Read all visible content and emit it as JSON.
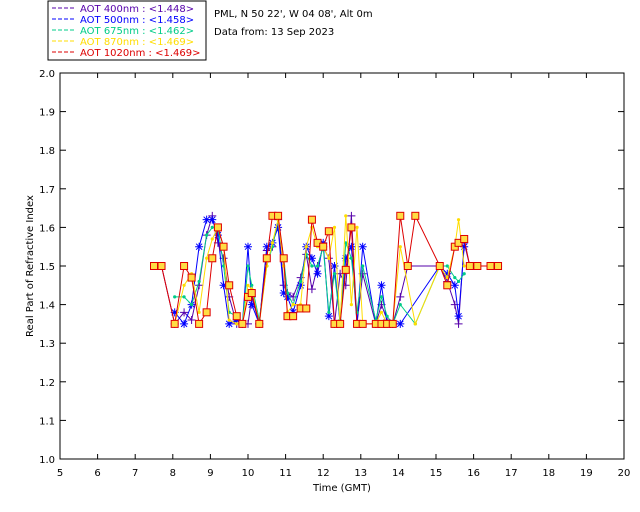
{
  "chart_data": {
    "type": "line",
    "xlabel": "Time (GMT)",
    "ylabel": "Real Part of Refractive Index",
    "xlim": [
      5,
      20
    ],
    "ylim": [
      1.0,
      2.0
    ],
    "x_ticks": [
      "5",
      "6",
      "7",
      "8",
      "9",
      "10",
      "11",
      "12",
      "13",
      "14",
      "15",
      "16",
      "17",
      "18",
      "19",
      "20"
    ],
    "y_ticks": [
      "1.0",
      "1.1",
      "1.2",
      "1.3",
      "1.4",
      "1.5",
      "1.6",
      "1.7",
      "1.8",
      "1.9",
      "2.0"
    ],
    "grid": false,
    "legend_position": "top-left-outside",
    "info": {
      "location": "PML, N 50 22', W 04 08', Alt 0m",
      "date": "Data from: 13 Sep 2023"
    },
    "series": [
      {
        "name": "AOT 400nm : <1.448>",
        "color": "#5500aa",
        "marker": "plus",
        "x": [
          7.5,
          7.7,
          8.05,
          8.3,
          8.5,
          8.7,
          8.9,
          9.05,
          9.2,
          9.35,
          9.5,
          9.7,
          9.85,
          10.0,
          10.1,
          10.3,
          10.5,
          10.65,
          10.8,
          10.95,
          11.05,
          11.2,
          11.4,
          11.55,
          11.7,
          11.85,
          12.0,
          12.15,
          12.3,
          12.45,
          12.6,
          12.75,
          12.9,
          13.05,
          13.4,
          13.55,
          13.7,
          13.85,
          14.05,
          14.25,
          15.1,
          15.3,
          15.5,
          15.6,
          15.75,
          15.9,
          16.1,
          16.45,
          16.65
        ],
        "y": [
          1.5,
          1.5,
          1.35,
          1.38,
          1.36,
          1.45,
          1.58,
          1.63,
          1.56,
          1.52,
          1.42,
          1.35,
          1.35,
          1.35,
          1.42,
          1.35,
          1.54,
          1.55,
          1.62,
          1.45,
          1.43,
          1.42,
          1.47,
          1.53,
          1.44,
          1.5,
          1.55,
          1.52,
          1.35,
          1.48,
          1.45,
          1.63,
          1.35,
          1.48,
          1.35,
          1.4,
          1.36,
          1.35,
          1.42,
          1.5,
          1.5,
          1.46,
          1.4,
          1.35,
          1.56,
          1.5,
          1.5,
          1.5,
          1.5
        ]
      },
      {
        "name": "AOT 500nm : <1.458>",
        "color": "#0000ff",
        "marker": "star",
        "x": [
          8.05,
          8.3,
          8.5,
          8.7,
          8.9,
          9.05,
          9.2,
          9.35,
          9.5,
          9.7,
          9.85,
          10.0,
          10.1,
          10.3,
          10.5,
          10.65,
          10.8,
          10.95,
          11.05,
          11.2,
          11.4,
          11.55,
          11.7,
          11.85,
          12.0,
          12.15,
          12.3,
          12.45,
          12.6,
          12.75,
          12.9,
          13.05,
          13.4,
          13.55,
          13.7,
          13.85,
          14.05,
          15.1,
          15.3,
          15.5,
          15.6,
          15.75
        ],
        "y": [
          1.38,
          1.35,
          1.4,
          1.55,
          1.62,
          1.62,
          1.58,
          1.45,
          1.35,
          1.36,
          1.35,
          1.55,
          1.4,
          1.35,
          1.55,
          1.56,
          1.6,
          1.43,
          1.42,
          1.38,
          1.45,
          1.55,
          1.52,
          1.48,
          1.56,
          1.37,
          1.5,
          1.35,
          1.52,
          1.55,
          1.35,
          1.55,
          1.35,
          1.45,
          1.35,
          1.35,
          1.35,
          1.5,
          1.48,
          1.45,
          1.37,
          1.55
        ]
      },
      {
        "name": "AOT 675nm : <1.462>",
        "color": "#00cc88",
        "marker": "dot",
        "x": [
          8.05,
          8.3,
          8.5,
          8.7,
          8.9,
          9.05,
          9.2,
          9.35,
          9.5,
          9.7,
          9.85,
          10.0,
          10.1,
          10.3,
          10.5,
          10.65,
          10.8,
          10.95,
          11.05,
          11.2,
          11.4,
          11.55,
          11.7,
          11.85,
          12.0,
          12.15,
          12.3,
          12.45,
          12.6,
          12.75,
          12.9,
          13.05,
          13.4,
          13.55,
          13.7,
          13.85,
          14.05,
          14.45,
          15.1,
          15.3,
          15.5,
          15.6,
          15.75
        ],
        "y": [
          1.42,
          1.42,
          1.4,
          1.46,
          1.58,
          1.6,
          1.6,
          1.5,
          1.38,
          1.37,
          1.35,
          1.5,
          1.45,
          1.36,
          1.5,
          1.55,
          1.62,
          1.52,
          1.43,
          1.4,
          1.46,
          1.53,
          1.5,
          1.5,
          1.55,
          1.38,
          1.48,
          1.36,
          1.56,
          1.52,
          1.38,
          1.5,
          1.36,
          1.42,
          1.37,
          1.35,
          1.4,
          1.35,
          1.5,
          1.5,
          1.47,
          1.46,
          1.48
        ]
      },
      {
        "name": "AOT 870nm : <1.469>",
        "color": "#ffdd00",
        "marker": "dot",
        "x": [
          8.05,
          8.3,
          8.5,
          8.7,
          8.9,
          9.05,
          9.2,
          9.35,
          9.5,
          9.7,
          9.85,
          10.0,
          10.1,
          10.3,
          10.5,
          10.65,
          10.8,
          10.95,
          11.05,
          11.2,
          11.4,
          11.55,
          11.7,
          11.85,
          12.0,
          12.15,
          12.3,
          12.45,
          12.6,
          12.75,
          12.9,
          13.05,
          13.4,
          13.55,
          13.7,
          13.85,
          14.05,
          14.45,
          15.1,
          15.3,
          15.5,
          15.6,
          15.75
        ],
        "y": [
          1.35,
          1.45,
          1.48,
          1.38,
          1.52,
          1.57,
          1.6,
          1.55,
          1.36,
          1.35,
          1.35,
          1.45,
          1.44,
          1.35,
          1.5,
          1.56,
          1.62,
          1.5,
          1.38,
          1.4,
          1.4,
          1.55,
          1.6,
          1.55,
          1.55,
          1.52,
          1.6,
          1.35,
          1.63,
          1.4,
          1.6,
          1.35,
          1.35,
          1.38,
          1.35,
          1.35,
          1.55,
          1.35,
          1.5,
          1.47,
          1.55,
          1.62,
          1.5
        ]
      },
      {
        "name": "AOT 1020nm : <1.469>",
        "color": "#dd0000",
        "marker": "square",
        "x": [
          7.5,
          7.7,
          8.05,
          8.3,
          8.5,
          8.7,
          8.9,
          9.05,
          9.2,
          9.35,
          9.5,
          9.7,
          9.85,
          10.0,
          10.1,
          10.3,
          10.5,
          10.65,
          10.8,
          10.95,
          11.05,
          11.2,
          11.4,
          11.55,
          11.7,
          11.85,
          12.0,
          12.15,
          12.3,
          12.45,
          12.6,
          12.75,
          12.9,
          13.05,
          13.4,
          13.55,
          13.7,
          13.85,
          14.05,
          14.25,
          14.45,
          15.1,
          15.3,
          15.5,
          15.6,
          15.75,
          15.9,
          16.1,
          16.45,
          16.65
        ],
        "y": [
          1.5,
          1.5,
          1.35,
          1.5,
          1.47,
          1.35,
          1.38,
          1.52,
          1.6,
          1.55,
          1.45,
          1.37,
          1.35,
          1.42,
          1.43,
          1.35,
          1.52,
          1.63,
          1.63,
          1.52,
          1.37,
          1.37,
          1.39,
          1.39,
          1.62,
          1.56,
          1.55,
          1.59,
          1.35,
          1.35,
          1.49,
          1.6,
          1.35,
          1.35,
          1.35,
          1.35,
          1.35,
          1.35,
          1.63,
          1.5,
          1.63,
          1.5,
          1.45,
          1.55,
          1.56,
          1.57,
          1.5,
          1.5,
          1.5,
          1.5
        ]
      }
    ]
  }
}
